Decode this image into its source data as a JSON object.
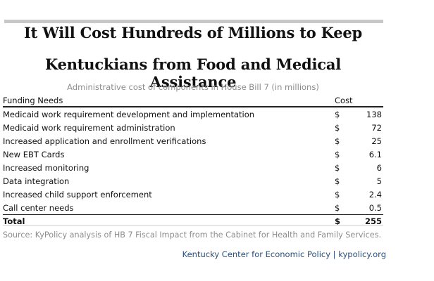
{
  "title_line1": "It Will Cost Hundreds of Millions to Keep",
  "title_line2": "Kentuckians from Food and Medical Assistance",
  "subtitle": "Administrative cost of components in House Bill 7 (in millions)",
  "table": {
    "headers": [
      "Funding Needs",
      "Cost"
    ],
    "currency_symbol": "$",
    "total_label": "Total",
    "total_value": "255"
  },
  "chart_data": {
    "type": "table",
    "title": "It Will Cost Hundreds of Millions to Keep Kentuckians from Food and Medical Assistance",
    "subtitle": "Administrative cost of components in House Bill 7 (in millions)",
    "columns": [
      "Funding Needs",
      "Cost"
    ],
    "rows": [
      {
        "label": "Medicaid work requirement development and implementation",
        "value": 138
      },
      {
        "label": "Medicaid work requirement administration",
        "value": 72
      },
      {
        "label": "Increased application and enrollment verifications",
        "value": 25
      },
      {
        "label": "New EBT Cards",
        "value": 6.1
      },
      {
        "label": "Increased monitoring",
        "value": 6
      },
      {
        "label": "Data integration",
        "value": 5
      },
      {
        "label": "Increased child support enforcement",
        "value": 2.4
      },
      {
        "label": "Call center needs",
        "value": 0.5
      }
    ],
    "total": {
      "label": "Total",
      "value": 255
    },
    "units": "$ millions"
  },
  "source": "Source: KyPolicy analysis of HB 7 Fiscal Impact from the Cabinet for Health and Family Services.",
  "credit": "Kentucky Center for Economic Policy | kypolicy.org",
  "colors": {
    "top_bar": "#c8c8c8",
    "muted_text": "#8c8c8c",
    "credit_text": "#2a4f7a"
  }
}
